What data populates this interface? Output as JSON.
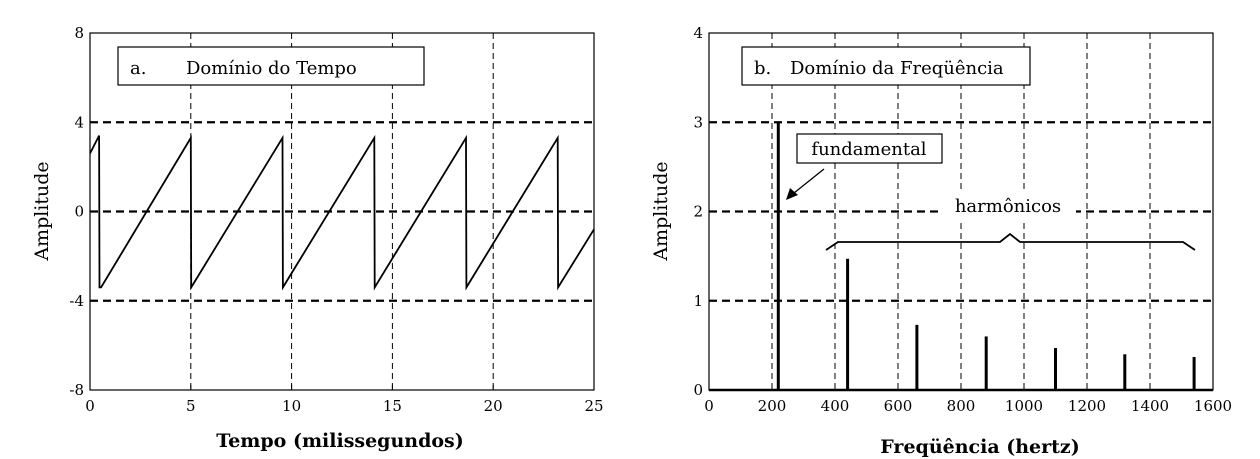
{
  "chart_data": [
    {
      "type": "line",
      "title": "Domínio do Tempo",
      "panel_label": "a.",
      "xlabel": "Tempo (milissegundos)",
      "ylabel": "Amplitude",
      "xlim": [
        0,
        25
      ],
      "ylim": [
        -8,
        8
      ],
      "xticks": [
        0,
        5,
        10,
        15,
        20,
        25
      ],
      "yticks": [
        -8,
        -4,
        0,
        4,
        8
      ],
      "grid": {
        "vertical": "thin-dashed",
        "horizontal": "thick-dashed",
        "horizontal_at": [
          -4,
          0,
          4
        ]
      },
      "series": [
        {
          "x": [
            0,
            0.45,
            0.47,
            0.55,
            5.0,
            5.02,
            9.55,
            9.57,
            14.1,
            14.12,
            18.65,
            18.67,
            23.2,
            23.22,
            25
          ],
          "y": [
            2.6,
            3.4,
            -3.4,
            -3.4,
            3.3,
            -3.4,
            3.3,
            -3.4,
            3.3,
            -3.4,
            3.3,
            -3.4,
            3.3,
            -3.4,
            -0.8
          ]
        }
      ]
    },
    {
      "type": "bar",
      "title": "Domínio da Freqüência",
      "panel_label": "b.",
      "xlabel": "Freqüência (hertz)",
      "ylabel": "Amplitude",
      "xlim": [
        0,
        1600
      ],
      "ylim": [
        0,
        4
      ],
      "xticks": [
        0,
        200,
        400,
        600,
        800,
        1000,
        1200,
        1400,
        1600
      ],
      "yticks": [
        0,
        1,
        2,
        3,
        4
      ],
      "grid": {
        "vertical": "thin-dashed",
        "horizontal": "thick-dashed",
        "horizontal_at": [
          1,
          2,
          3
        ]
      },
      "x": [
        220,
        440,
        660,
        880,
        1100,
        1320,
        1540
      ],
      "values": [
        3.0,
        1.47,
        0.73,
        0.6,
        0.47,
        0.4,
        0.37
      ],
      "annotations": [
        {
          "text": "fundamental",
          "target_x": 220
        },
        {
          "text": "harmônicos",
          "spans": [
            440,
            1540
          ]
        }
      ]
    }
  ]
}
